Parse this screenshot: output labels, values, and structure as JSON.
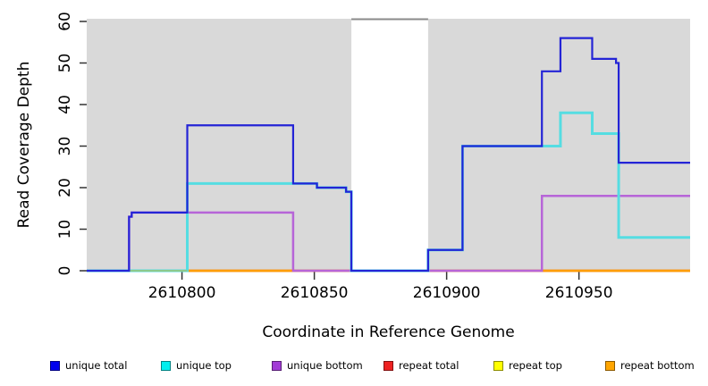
{
  "figure": {
    "xlabel": "Coordinate in Reference Genome",
    "ylabel": "Read Coverage Depth",
    "background": "#ffffff",
    "panel_fill": "#d9d9d9",
    "tick_color": "#333333",
    "text_color": "#000000"
  },
  "chart_data": {
    "type": "line",
    "step": true,
    "title": "",
    "xlabel": "Coordinate in Reference Genome",
    "ylabel": "Read Coverage Depth",
    "xlim": [
      2610764,
      2610992
    ],
    "ylim": [
      0,
      61
    ],
    "xticks": [
      2610800,
      2610850,
      2610900,
      2610950
    ],
    "yticks": [
      0,
      10,
      20,
      30,
      40,
      50,
      60
    ],
    "grid": false,
    "legend_position": "bottom",
    "shaded_panels": [
      {
        "x0": 2610764,
        "x1": 2610864,
        "fill": "#d9d9d9"
      },
      {
        "x0": 2610893,
        "x1": 2610992,
        "fill": "#d9d9d9"
      }
    ],
    "uncovered_gap": {
      "x0": 2610864,
      "x1": 2610893,
      "fill": "#ffffff",
      "top_border_color": "#8a8a8a"
    },
    "series": [
      {
        "name": "repeat top",
        "color": "#ffee00",
        "width": 2.5,
        "in_legend": true,
        "segments": [
          [
            [
              2610764,
              0
            ],
            [
              2610992,
              0
            ]
          ]
        ]
      },
      {
        "name": "repeat total",
        "color": "#e04a5e",
        "width": 2.5,
        "in_legend": true,
        "segments": [
          [
            [
              2610764,
              0
            ],
            [
              2610992,
              0
            ]
          ]
        ]
      },
      {
        "name": "repeat bottom",
        "color": "#ff9d00",
        "width": 2.5,
        "in_legend": true,
        "segments": [
          [
            [
              2610802,
              0
            ],
            [
              2610842,
              0
            ]
          ],
          [
            [
              2610936,
              0
            ],
            [
              2610992,
              0
            ]
          ]
        ]
      },
      {
        "name": "unique bottom",
        "color": "#b765d8",
        "width": 2.5,
        "in_legend": true,
        "segments": [
          [
            [
              2610764,
              0
            ],
            [
              2610780,
              13
            ],
            [
              2610781,
              14
            ],
            [
              2610842,
              0
            ],
            [
              2610936,
              18
            ],
            [
              2610992,
              18
            ]
          ]
        ]
      },
      {
        "name": "unique top",
        "color": "#55dde2",
        "width": 3,
        "in_legend": true,
        "segments": [
          [
            [
              2610764,
              0
            ],
            [
              2610802,
              21
            ],
            [
              2610851,
              20
            ],
            [
              2610862,
              19
            ],
            [
              2610864,
              0
            ],
            [
              2610893,
              5
            ],
            [
              2610906,
              30
            ],
            [
              2610943,
              38
            ],
            [
              2610955,
              33
            ],
            [
              2610965,
              8
            ],
            [
              2610992,
              8
            ]
          ]
        ]
      },
      {
        "name": "unique-top repeat-top overlap",
        "color": "#8cc98c",
        "width": 2,
        "in_legend": false,
        "segments": [
          [
            [
              2610780,
              0
            ],
            [
              2610802,
              0
            ]
          ]
        ]
      },
      {
        "name": "unique total",
        "color": "#2424d6",
        "width": 2.2,
        "in_legend": true,
        "segments": [
          [
            [
              2610764,
              0
            ],
            [
              2610780,
              13
            ],
            [
              2610781,
              14
            ],
            [
              2610802,
              35
            ],
            [
              2610842,
              21
            ],
            [
              2610851,
              20
            ],
            [
              2610862,
              19
            ],
            [
              2610864,
              0
            ],
            [
              2610893,
              5
            ],
            [
              2610906,
              30
            ],
            [
              2610936,
              48
            ],
            [
              2610943,
              56
            ],
            [
              2610955,
              51
            ],
            [
              2610964,
              50
            ],
            [
              2610965,
              26
            ],
            [
              2610992,
              26
            ]
          ]
        ]
      }
    ],
    "legend": {
      "items": [
        {
          "label": "unique total",
          "color": "#0000ee"
        },
        {
          "label": "unique top",
          "color": "#00eeee"
        },
        {
          "label": "unique bottom",
          "color": "#a23bd6"
        },
        {
          "label": "repeat total",
          "color": "#ee2222"
        },
        {
          "label": "repeat top",
          "color": "#ffff00"
        },
        {
          "label": "repeat bottom",
          "color": "#ffa500"
        }
      ]
    }
  }
}
